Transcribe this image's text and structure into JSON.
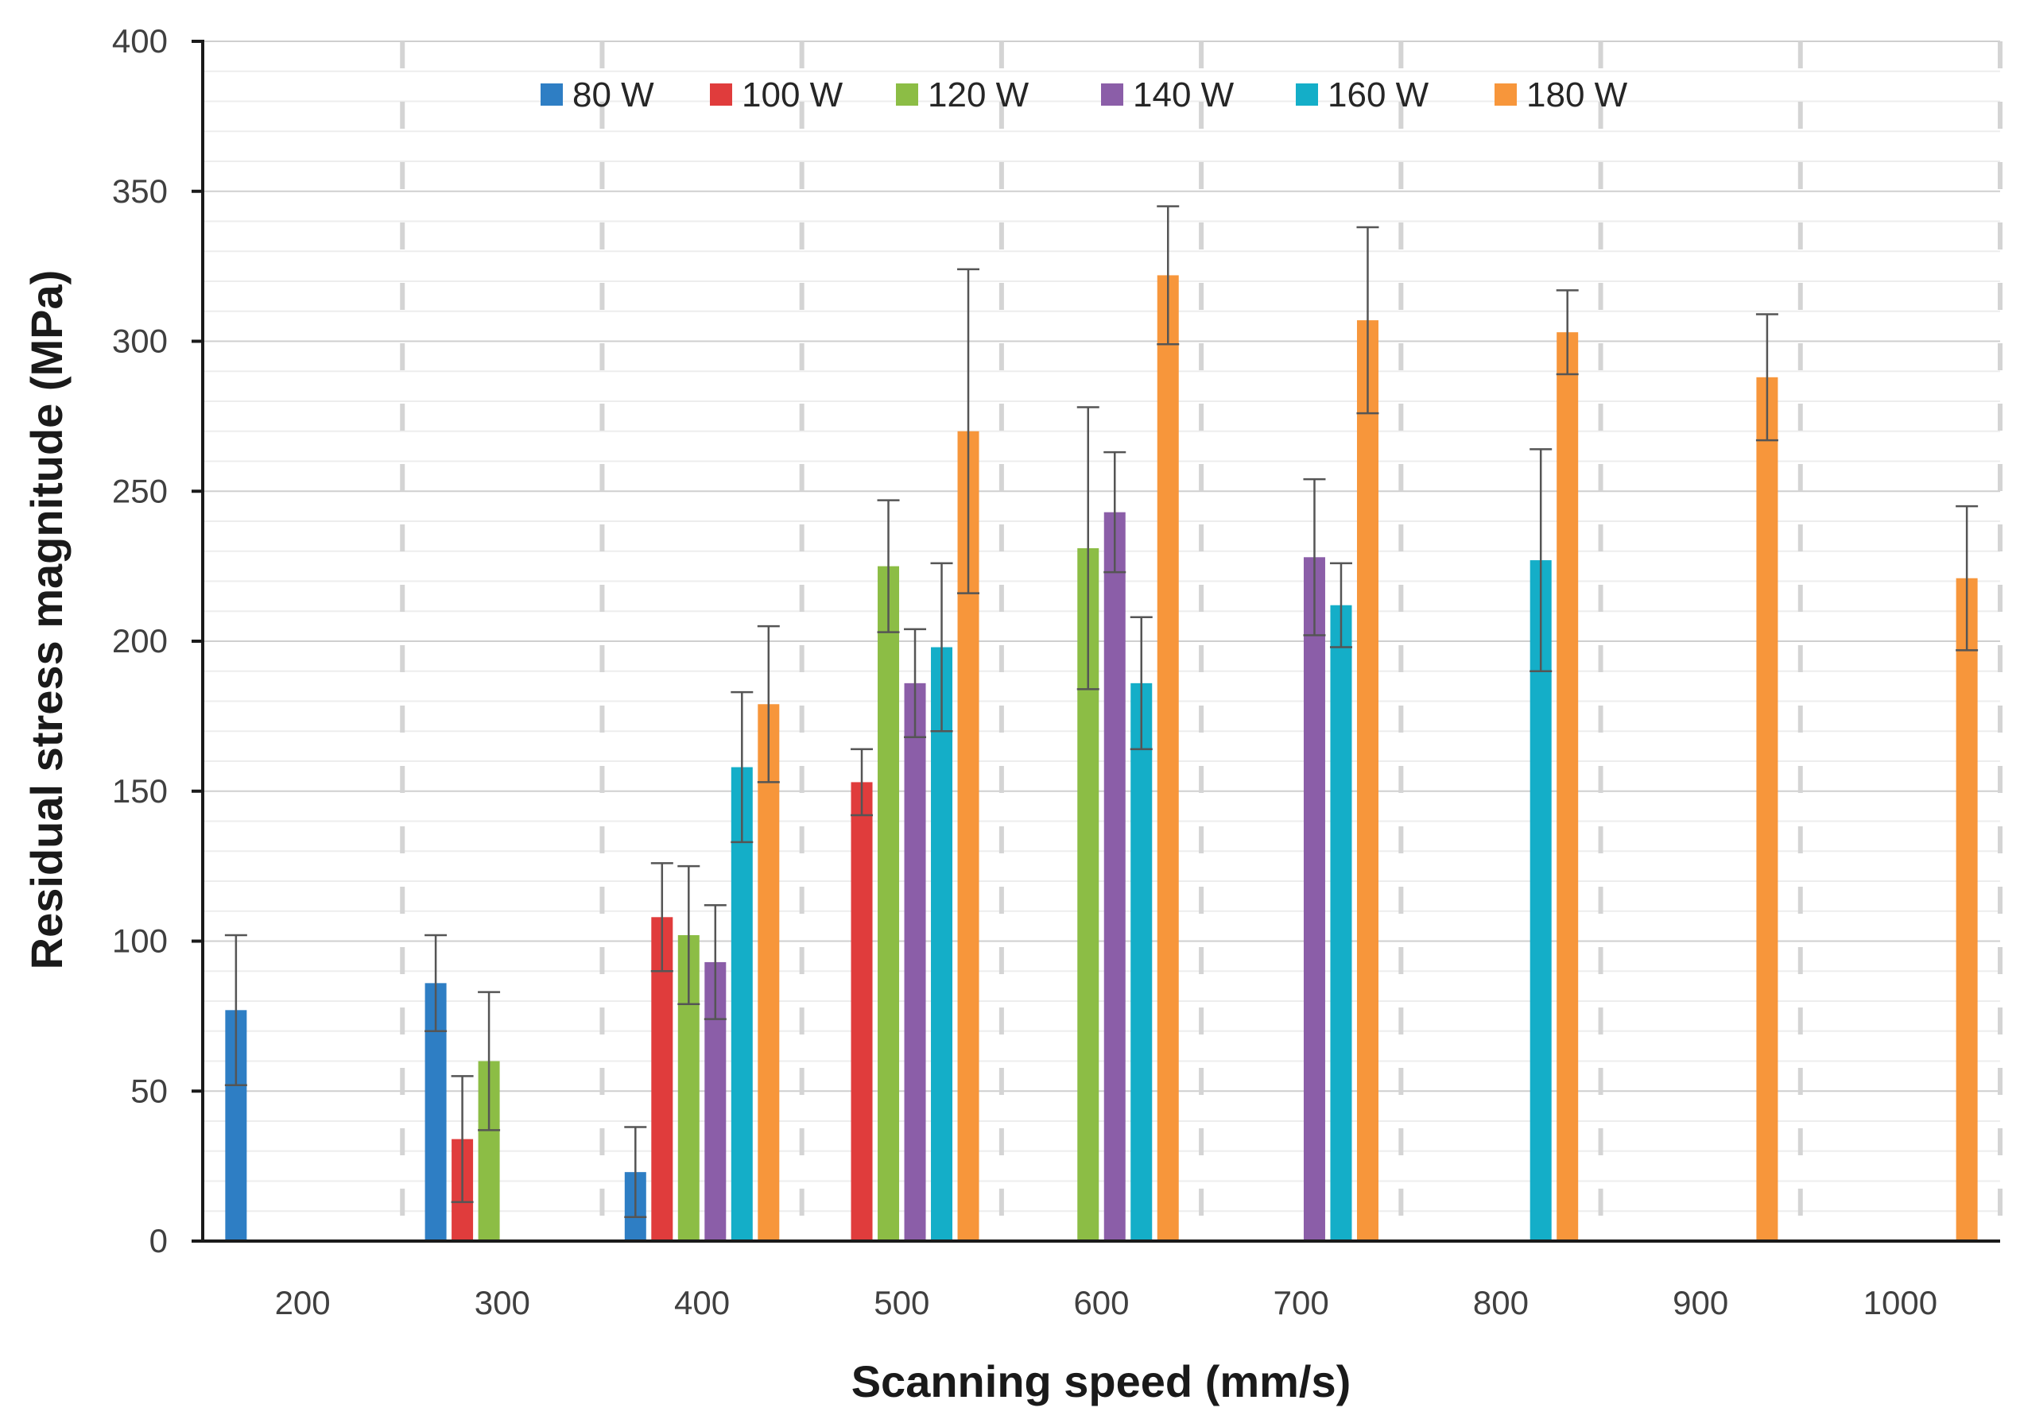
{
  "chart_data": {
    "type": "bar",
    "title": "",
    "xlabel": "Scanning speed (mm/s)",
    "ylabel": "Residual stress magnitude (MPa)",
    "ylim": [
      0,
      400
    ],
    "yticks": [
      0,
      50,
      100,
      150,
      200,
      250,
      300,
      350,
      400
    ],
    "grid": true,
    "legend": "top",
    "categories": [
      "200",
      "300",
      "400",
      "500",
      "600",
      "700",
      "800",
      "900",
      "1000"
    ],
    "series": [
      {
        "name": "80 W",
        "color": "#2e7ec4",
        "values": [
          77,
          86,
          23,
          null,
          null,
          null,
          null,
          null,
          null
        ],
        "errors": [
          25,
          16,
          15,
          null,
          null,
          null,
          null,
          null,
          null
        ]
      },
      {
        "name": "100 W",
        "color": "#e03c3c",
        "values": [
          null,
          34,
          108,
          153,
          null,
          null,
          null,
          null,
          null
        ],
        "errors": [
          null,
          21,
          18,
          11,
          null,
          null,
          null,
          null,
          null
        ]
      },
      {
        "name": "120 W",
        "color": "#8cbd45",
        "values": [
          null,
          60,
          102,
          225,
          231,
          null,
          null,
          null,
          null
        ],
        "errors": [
          null,
          23,
          23,
          22,
          47,
          null,
          null,
          null,
          null
        ]
      },
      {
        "name": "140 W",
        "color": "#8b5ea8",
        "values": [
          null,
          null,
          93,
          186,
          243,
          228,
          null,
          null,
          null
        ],
        "errors": [
          null,
          null,
          19,
          18,
          20,
          26,
          null,
          null,
          null
        ]
      },
      {
        "name": "160 W",
        "color": "#14aec8",
        "values": [
          null,
          null,
          158,
          198,
          186,
          212,
          227,
          null,
          null
        ],
        "errors": [
          null,
          null,
          25,
          28,
          22,
          14,
          37,
          null,
          null
        ]
      },
      {
        "name": "180 W",
        "color": "#f7963b",
        "values": [
          null,
          null,
          179,
          270,
          322,
          307,
          303,
          288,
          221
        ],
        "errors": [
          null,
          null,
          26,
          54,
          23,
          31,
          14,
          21,
          24
        ]
      }
    ]
  }
}
